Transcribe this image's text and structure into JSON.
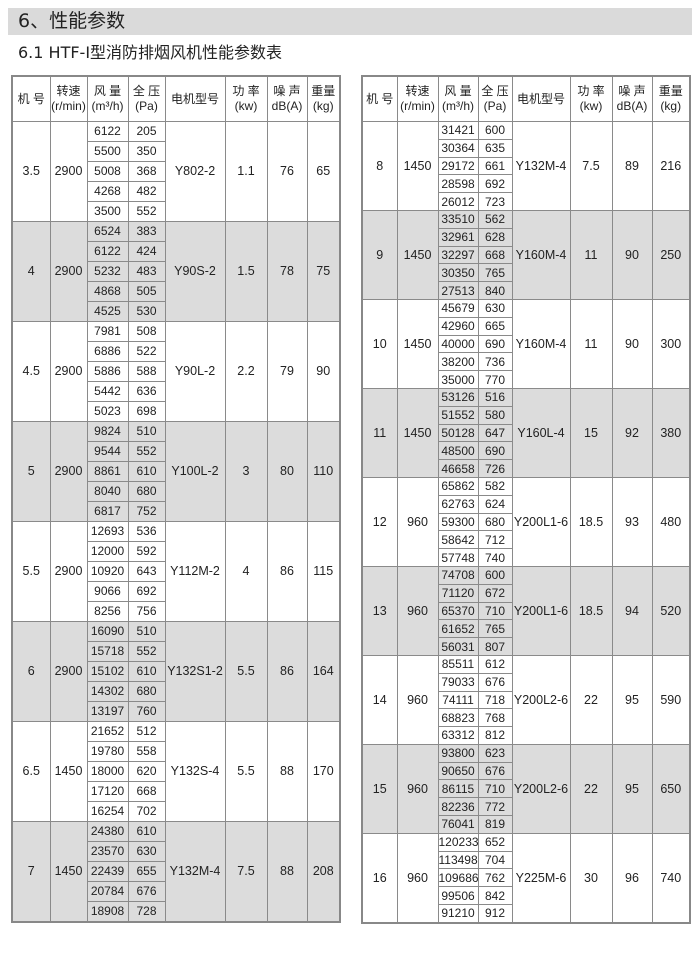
{
  "section_title": "6、性能参数",
  "table_title": "6.1  HTF-I型消防排烟风机性能参数表",
  "headers": [
    {
      "l1": "机  号",
      "l2": ""
    },
    {
      "l1": "转速",
      "l2": "(r/min)"
    },
    {
      "l1": "风 量",
      "l2": "(m³/h)"
    },
    {
      "l1": "全 压",
      "l2": "(Pa)"
    },
    {
      "l1": "电机型号",
      "l2": ""
    },
    {
      "l1": "功 率",
      "l2": "(kw)"
    },
    {
      "l1": "噪 声",
      "l2": "dB(A)"
    },
    {
      "l1": "重量",
      "l2": "(kg)"
    }
  ],
  "left_table": [
    {
      "model": "3.5",
      "speed": "2900",
      "flow": [
        "6122",
        "5500",
        "5008",
        "4268",
        "3500"
      ],
      "pressure": [
        "205",
        "350",
        "368",
        "482",
        "552"
      ],
      "motor": "Y802-2",
      "power": "1.1",
      "noise": "76",
      "weight": "65"
    },
    {
      "model": "4",
      "speed": "2900",
      "flow": [
        "6524",
        "6122",
        "5232",
        "4868",
        "4525"
      ],
      "pressure": [
        "383",
        "424",
        "483",
        "505",
        "530"
      ],
      "motor": "Y90S-2",
      "power": "1.5",
      "noise": "78",
      "weight": "75"
    },
    {
      "model": "4.5",
      "speed": "2900",
      "flow": [
        "7981",
        "6886",
        "5886",
        "5442",
        "5023"
      ],
      "pressure": [
        "508",
        "522",
        "588",
        "636",
        "698"
      ],
      "motor": "Y90L-2",
      "power": "2.2",
      "noise": "79",
      "weight": "90"
    },
    {
      "model": "5",
      "speed": "2900",
      "flow": [
        "9824",
        "9544",
        "8861",
        "8040",
        "6817"
      ],
      "pressure": [
        "510",
        "552",
        "610",
        "680",
        "752"
      ],
      "motor": "Y100L-2",
      "power": "3",
      "noise": "80",
      "weight": "110"
    },
    {
      "model": "5.5",
      "speed": "2900",
      "flow": [
        "12693",
        "12000",
        "10920",
        "9066",
        "8256"
      ],
      "pressure": [
        "536",
        "592",
        "643",
        "692",
        "756"
      ],
      "motor": "Y112M-2",
      "power": "4",
      "noise": "86",
      "weight": "115"
    },
    {
      "model": "6",
      "speed": "2900",
      "flow": [
        "16090",
        "15718",
        "15102",
        "14302",
        "13197"
      ],
      "pressure": [
        "510",
        "552",
        "610",
        "680",
        "760"
      ],
      "motor": "Y132S1-2",
      "power": "5.5",
      "noise": "86",
      "weight": "164"
    },
    {
      "model": "6.5",
      "speed": "1450",
      "flow": [
        "21652",
        "19780",
        "18000",
        "17120",
        "16254"
      ],
      "pressure": [
        "512",
        "558",
        "620",
        "668",
        "702"
      ],
      "motor": "Y132S-4",
      "power": "5.5",
      "noise": "88",
      "weight": "170"
    },
    {
      "model": "7",
      "speed": "1450",
      "flow": [
        "24380",
        "23570",
        "22439",
        "20784",
        "18908"
      ],
      "pressure": [
        "610",
        "630",
        "655",
        "676",
        "728"
      ],
      "motor": "Y132M-4",
      "power": "7.5",
      "noise": "88",
      "weight": "208"
    }
  ],
  "right_table": [
    {
      "model": "8",
      "speed": "1450",
      "flow": [
        "31421",
        "30364",
        "29172",
        "28598",
        "26012"
      ],
      "pressure": [
        "600",
        "635",
        "661",
        "692",
        "723"
      ],
      "motor": "Y132M-4",
      "power": "7.5",
      "noise": "89",
      "weight": "216"
    },
    {
      "model": "9",
      "speed": "1450",
      "flow": [
        "33510",
        "32961",
        "32297",
        "30350",
        "27513"
      ],
      "pressure": [
        "562",
        "628",
        "668",
        "765",
        "840"
      ],
      "motor": "Y160M-4",
      "power": "11",
      "noise": "90",
      "weight": "250"
    },
    {
      "model": "10",
      "speed": "1450",
      "flow": [
        "45679",
        "42960",
        "40000",
        "38200",
        "35000"
      ],
      "pressure": [
        "630",
        "665",
        "690",
        "736",
        "770"
      ],
      "motor": "Y160M-4",
      "power": "11",
      "noise": "90",
      "weight": "300"
    },
    {
      "model": "11",
      "speed": "1450",
      "flow": [
        "53126",
        "51552",
        "50128",
        "48500",
        "46658"
      ],
      "pressure": [
        "516",
        "580",
        "647",
        "690",
        "726"
      ],
      "motor": "Y160L-4",
      "power": "15",
      "noise": "92",
      "weight": "380"
    },
    {
      "model": "12",
      "speed": "960",
      "flow": [
        "65862",
        "62763",
        "59300",
        "58642",
        "57748"
      ],
      "pressure": [
        "582",
        "624",
        "680",
        "712",
        "740"
      ],
      "motor": "Y200L1-6",
      "power": "18.5",
      "noise": "93",
      "weight": "480"
    },
    {
      "model": "13",
      "speed": "960",
      "flow": [
        "74708",
        "71120",
        "65370",
        "61652",
        "56031"
      ],
      "pressure": [
        "600",
        "672",
        "710",
        "765",
        "807"
      ],
      "motor": "Y200L1-6",
      "power": "18.5",
      "noise": "94",
      "weight": "520"
    },
    {
      "model": "14",
      "speed": "960",
      "flow": [
        "85511",
        "79033",
        "74111",
        "68823",
        "63312"
      ],
      "pressure": [
        "612",
        "676",
        "718",
        "768",
        "812"
      ],
      "motor": "Y200L2-6",
      "power": "22",
      "noise": "95",
      "weight": "590"
    },
    {
      "model": "15",
      "speed": "960",
      "flow": [
        "93800",
        "90650",
        "86115",
        "82236",
        "76041"
      ],
      "pressure": [
        "623",
        "676",
        "710",
        "772",
        "819"
      ],
      "motor": "Y200L2-6",
      "power": "22",
      "noise": "95",
      "weight": "650"
    },
    {
      "model": "16",
      "speed": "960",
      "flow": [
        "120233",
        "113498",
        "109686",
        "99506",
        "91210"
      ],
      "pressure": [
        "652",
        "704",
        "762",
        "842",
        "912"
      ],
      "motor": "Y225M-6",
      "power": "30",
      "noise": "96",
      "weight": "740"
    }
  ],
  "colors": {
    "section_bg": "#dadada",
    "alt_row_bg": "#dcdcdc",
    "border": "#8a8a8a"
  }
}
